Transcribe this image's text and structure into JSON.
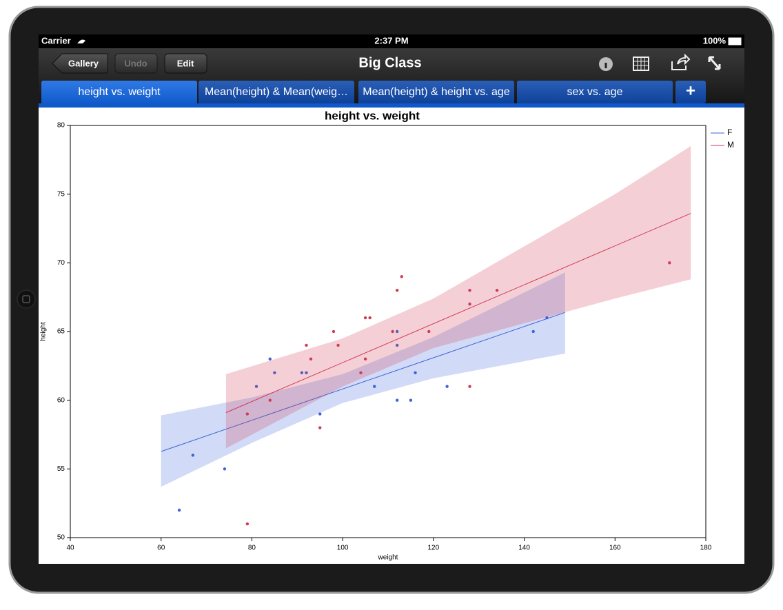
{
  "status_bar": {
    "carrier": "Carrier",
    "time": "2:37 PM",
    "battery": "100%"
  },
  "toolbar": {
    "buttons": [
      "Gallery",
      "Undo",
      "Edit"
    ],
    "title": "Big Class"
  },
  "tabs": [
    "height vs. weight",
    "Mean(height) & Mean(weig…",
    "Mean(height) & height vs. age",
    "sex vs. age"
  ],
  "add_tab": "+",
  "chart_data": {
    "type": "scatter",
    "title": "height vs. weight",
    "x_label": "weight",
    "y_label": "height",
    "xlim": [
      40,
      180
    ],
    "xticks": [
      40,
      60,
      80,
      100,
      120,
      140,
      160,
      180
    ],
    "ylim": [
      50,
      80
    ],
    "yticks": [
      50,
      55,
      60,
      65,
      70,
      75,
      80
    ],
    "legend": "top-right",
    "series": [
      {
        "name": "F",
        "color": "#3d63d8",
        "x": [
          64,
          67,
          74,
          84,
          81,
          85,
          91,
          92,
          95,
          107,
          112,
          112,
          112,
          115,
          116,
          123,
          142,
          145
        ],
        "values": [
          52,
          56,
          55,
          63,
          61,
          62,
          62,
          62,
          59,
          61,
          65,
          64,
          60,
          60,
          62,
          61,
          65,
          66
        ],
        "fit_x": [
          60,
          149
        ],
        "fit": [
          56.27,
          66.39
        ],
        "band_x": [
          60,
          80,
          100,
          120,
          149
        ],
        "band_lower": [
          53.7,
          56.9,
          59.8,
          61.6,
          63.4
        ],
        "band_upper": [
          58.9,
          60.2,
          61.9,
          64.6,
          69.3
        ]
      },
      {
        "name": "M",
        "color": "#d23a55",
        "x": [
          79,
          79,
          84,
          92,
          93,
          95,
          98,
          99,
          104,
          105,
          105,
          106,
          111,
          112,
          113,
          119,
          128,
          128,
          128,
          134,
          172
        ],
        "values": [
          59,
          51,
          60,
          64,
          63,
          58,
          65,
          64,
          62,
          66,
          63,
          66,
          65,
          68,
          69,
          65,
          68,
          67,
          61,
          68,
          70
        ],
        "fit_x": [
          74.3,
          176.7
        ],
        "fit": [
          59.1,
          73.6
        ],
        "band_x": [
          74.3,
          100,
          120,
          140,
          160,
          176.7
        ],
        "band_lower": [
          56.5,
          61.0,
          63.8,
          65.6,
          67.4,
          68.8
        ],
        "band_upper": [
          61.9,
          64.5,
          67.4,
          71.2,
          75.0,
          78.5
        ]
      }
    ]
  }
}
